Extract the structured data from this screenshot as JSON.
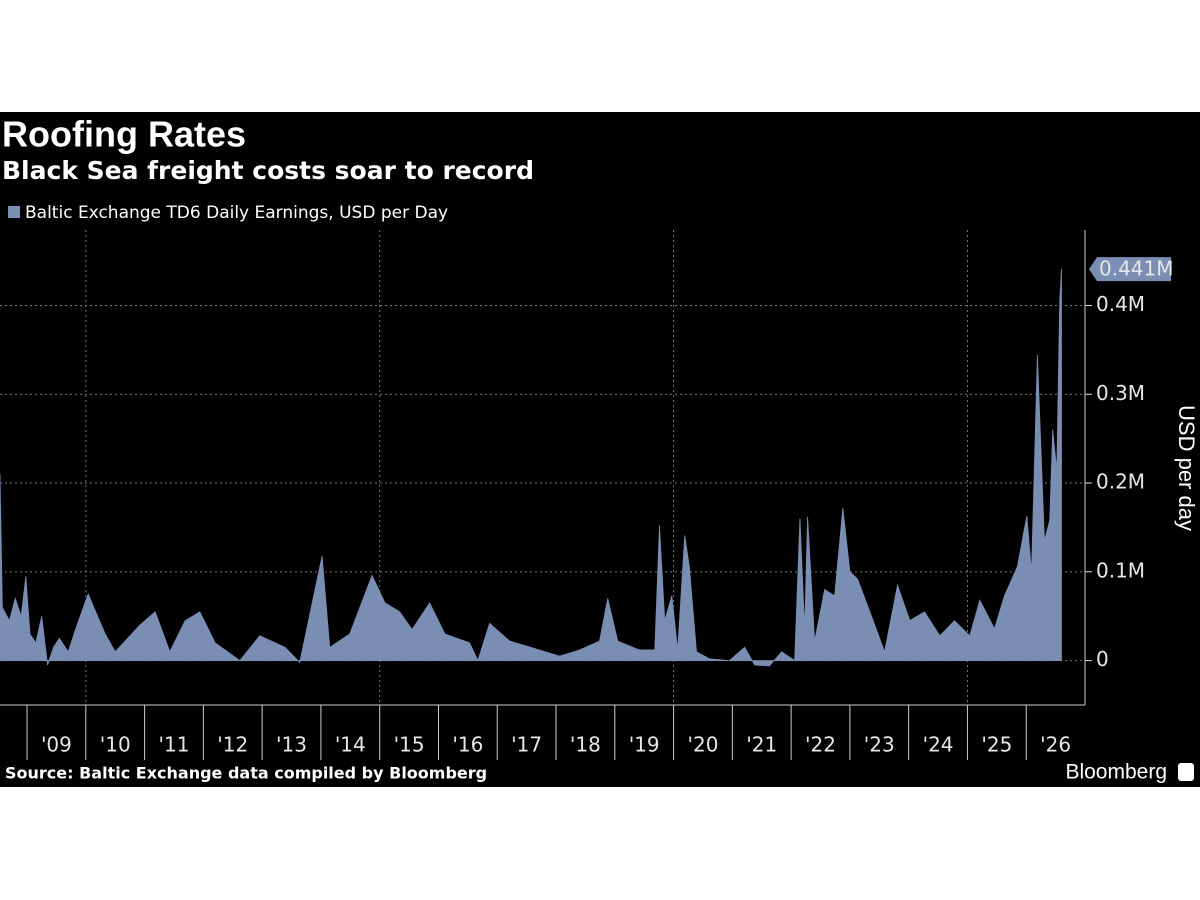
{
  "chart_data": {
    "type": "area",
    "title": "Roofing Rates",
    "subtitle": "Black Sea freight costs soar to record",
    "y_axis_label": "USD per day",
    "source": "Source: Baltic Exchange data compiled by Bloomberg",
    "brand": "Bloomberg",
    "x": [
      2008.54,
      2008.58,
      2008.7,
      2008.8,
      2008.9,
      2008.98,
      2009.05,
      2009.15,
      2009.25,
      2009.35,
      2009.45,
      2009.55,
      2009.7,
      2009.85,
      2010.04,
      2010.33,
      2010.5,
      2010.92,
      2011.18,
      2011.43,
      2011.69,
      2011.94,
      2012.2,
      2012.62,
      2012.96,
      2013.39,
      2013.64,
      2014.02,
      2014.15,
      2014.49,
      2014.87,
      2015.09,
      2015.34,
      2015.55,
      2015.85,
      2016.11,
      2016.53,
      2016.67,
      2016.87,
      2017.21,
      2017.72,
      2018.06,
      2018.4,
      2018.74,
      2018.88,
      2019.05,
      2019.42,
      2019.68,
      2019.76,
      2019.85,
      2019.97,
      2020.07,
      2020.19,
      2020.27,
      2020.39,
      2020.61,
      2020.95,
      2021.21,
      2021.38,
      2021.63,
      2021.84,
      2022.06,
      2022.15,
      2022.23,
      2022.28,
      2022.4,
      2022.57,
      2022.74,
      2022.88,
      2023.0,
      2023.13,
      2023.34,
      2023.59,
      2023.81,
      2024.02,
      2024.27,
      2024.53,
      2024.78,
      2025.04,
      2025.21,
      2025.46,
      2025.63,
      2025.85,
      2026.01,
      2026.09,
      2026.19,
      2026.31,
      2026.4,
      2026.45,
      2026.52,
      2026.57,
      2026.6
    ],
    "series": [
      {
        "name": "Baltic Exchange TD6 Daily Earnings, USD per Day",
        "color": "#7a8db3",
        "values": [
          210000,
          60000,
          45000,
          70000,
          50000,
          95000,
          30000,
          20000,
          50000,
          -5000,
          15000,
          25000,
          10000,
          40000,
          75000,
          30000,
          10000,
          40000,
          55000,
          10000,
          45000,
          55000,
          20000,
          0,
          28000,
          15000,
          -2000,
          118000,
          15000,
          30000,
          96000,
          65000,
          55000,
          35000,
          65000,
          30000,
          20000,
          0,
          42000,
          22000,
          12000,
          5000,
          12000,
          22000,
          70000,
          22000,
          12000,
          12000,
          152000,
          45000,
          73000,
          12000,
          141000,
          105000,
          10000,
          2000,
          0,
          15000,
          -5000,
          -6000,
          10000,
          0,
          160000,
          35000,
          162000,
          22000,
          80000,
          73000,
          172000,
          100000,
          92000,
          55000,
          10000,
          85000,
          45000,
          55000,
          28000,
          45000,
          28000,
          68000,
          36000,
          73000,
          106000,
          163000,
          100000,
          344000,
          135000,
          158000,
          260000,
          214000,
          406000,
          441000
        ]
      }
    ],
    "last_value": {
      "value": 441000,
      "label": "0.441M"
    },
    "xlim": [
      2008.54,
      2027
    ],
    "xticks": [
      {
        "value": 2009,
        "label": "'09"
      },
      {
        "value": 2010,
        "label": "'10"
      },
      {
        "value": 2011,
        "label": "'11"
      },
      {
        "value": 2012,
        "label": "'12"
      },
      {
        "value": 2013,
        "label": "'13"
      },
      {
        "value": 2014,
        "label": "'14"
      },
      {
        "value": 2015,
        "label": "'15"
      },
      {
        "value": 2016,
        "label": "'16"
      },
      {
        "value": 2017,
        "label": "'17"
      },
      {
        "value": 2018,
        "label": "'18"
      },
      {
        "value": 2019,
        "label": "'19"
      },
      {
        "value": 2020,
        "label": "'20"
      },
      {
        "value": 2021,
        "label": "'21"
      },
      {
        "value": 2022,
        "label": "'22"
      },
      {
        "value": 2023,
        "label": "'23"
      },
      {
        "value": 2024,
        "label": "'24"
      },
      {
        "value": 2025,
        "label": "'25"
      },
      {
        "value": 2026,
        "label": "'26"
      }
    ],
    "ylim": [
      -50000,
      485000
    ],
    "yticks": [
      0,
      {
        "value": 100000,
        "label": "0.1M"
      },
      {
        "value": 200000,
        "label": "0.2M"
      },
      {
        "value": 300000,
        "label": "0.3M"
      },
      {
        "value": 400000,
        "label": "0.4M"
      }
    ],
    "grid": true
  }
}
